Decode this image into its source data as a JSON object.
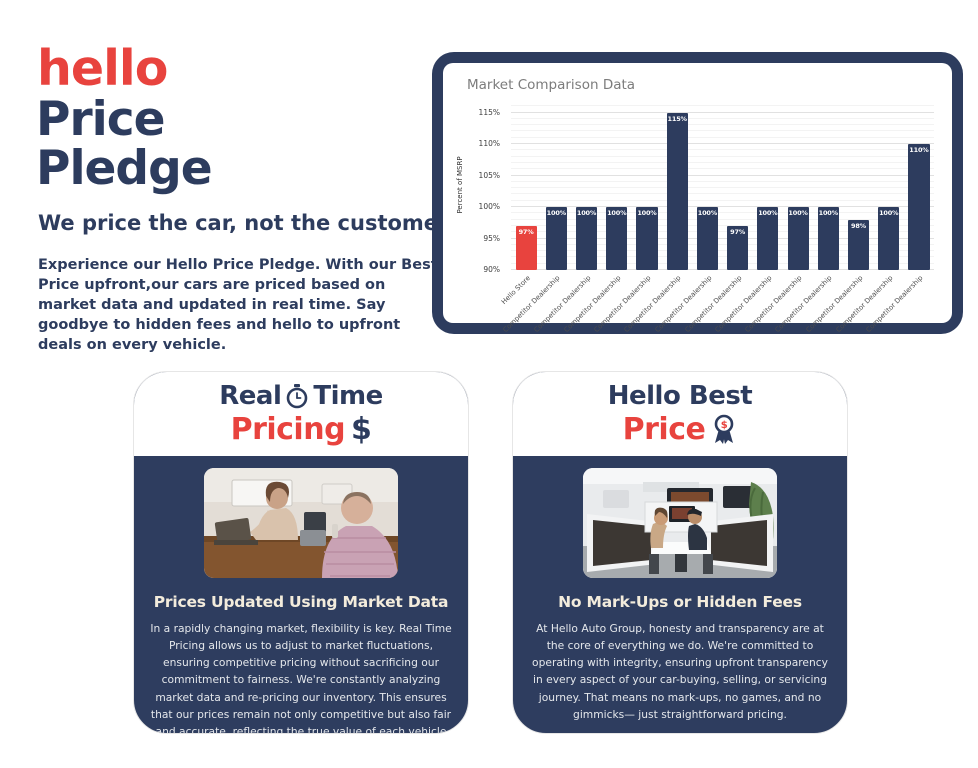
{
  "intro": {
    "logo": "hello",
    "title_line1": "Price",
    "title_line2": "Pledge",
    "tagline": "We price the car, not the customer.",
    "description": "Experience our Hello Price Pledge. With our Best Price upfront,our cars are priced based on market data and updated in real time. Say goodbye to hidden fees and hello to upfront deals on every vehicle."
  },
  "chart_data": {
    "type": "bar",
    "title": "Market Comparison Data",
    "xlabel": "",
    "ylabel": "Percent of MSRP",
    "ylim": [
      90,
      117
    ],
    "yticks": [
      90,
      95,
      100,
      105,
      110,
      115
    ],
    "ytick_labels": [
      "90%",
      "95%",
      "100%",
      "105%",
      "110%",
      "115%"
    ],
    "grid": true,
    "legend": "none",
    "categories": [
      "Hello Store",
      "Competitor Dealership",
      "Competitor Dealership",
      "Competitor Dealership",
      "Competitor Dealership",
      "Competitor Dealership",
      "Competitor Dealership",
      "Competitor Dealership",
      "Competitor Dealership",
      "Competitor Dealership",
      "Competitor Dealership",
      "Competitor Dealership",
      "Competitor Dealership",
      "Competitor Dealership"
    ],
    "values": [
      97,
      100,
      100,
      100,
      100,
      115,
      100,
      97,
      100,
      100,
      100,
      98,
      100,
      110
    ],
    "bar_labels": [
      "97%",
      "100%",
      "100%",
      "100%",
      "100%",
      "115%",
      "100%",
      "97%",
      "100%",
      "100%",
      "100%",
      "98%",
      "100%",
      "110%"
    ],
    "highlight_index": 0,
    "bar_color": "#2d3c5e",
    "highlight_color": "#e8433e"
  },
  "cards": [
    {
      "title_line1_left": "Real",
      "title_line1_right": "Time",
      "title_line2_left": "Pricing",
      "title_line2_right": "$",
      "heading": "Prices Updated Using Market Data",
      "body": "In a rapidly changing market, flexibility is key. Real Time Pricing allows us to adjust to market fluctuations, ensuring competitive pricing without sacrificing our commitment to fairness. We're constantly analyzing market data and re-pricing our inventory. This ensures that our prices remain not only competitive but also fair and accurate, reflecting the true value of each vehicle in real-time."
    },
    {
      "title_line1": "Hello Best",
      "title_line2": "Price",
      "heading": "No Mark-Ups or Hidden Fees",
      "body": "At Hello Auto Group, honesty and transparency are at the core of everything we do. We're committed to operating with integrity, ensuring upfront transparency in every aspect of your car-buying, selling, or servicing journey. That means no mark-ups, no games, and no gimmicks— just straightforward pricing."
    }
  ],
  "colors": {
    "accent_red": "#e8433e",
    "navy": "#2d3c5e",
    "card_navy": "#2e3d5f",
    "cream_heading": "#f3ecdc"
  }
}
